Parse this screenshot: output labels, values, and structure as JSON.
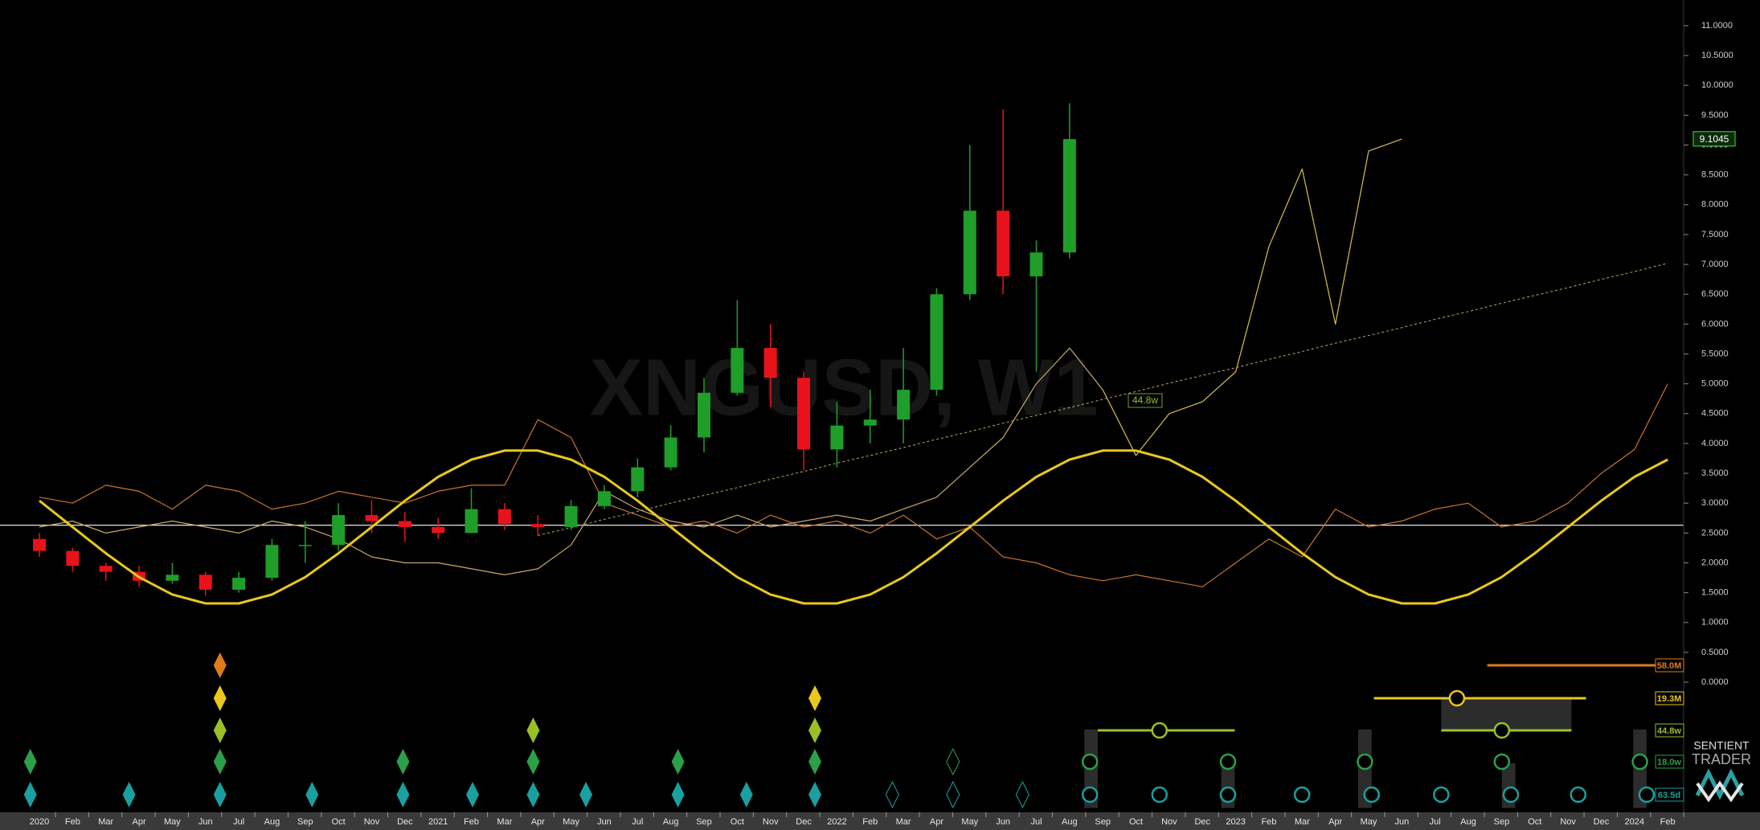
{
  "chart_data": {
    "type": "candlestick",
    "watermark": "XNGUSD, W1",
    "categories": [
      "2020",
      "Feb",
      "Mar",
      "Apr",
      "May",
      "Jun",
      "Jul",
      "Aug",
      "Sep",
      "Oct",
      "Nov",
      "Dec",
      "2021",
      "Feb",
      "Mar",
      "Apr",
      "May",
      "Jun",
      "Jul",
      "Aug",
      "Sep",
      "Oct",
      "Nov",
      "Dec",
      "2022",
      "Feb",
      "Mar",
      "Apr",
      "May",
      "Jun",
      "Jul",
      "Aug",
      "Sep",
      "Oct",
      "Nov",
      "Dec",
      "2023",
      "Feb",
      "Mar",
      "Apr",
      "May",
      "Jun",
      "Jul",
      "Aug",
      "Sep",
      "Oct",
      "Nov",
      "Dec",
      "2024",
      "Feb"
    ],
    "ohlc": {
      "up_color": "#1f9e2a",
      "down_color": "#e8121a",
      "open": [
        2.4,
        2.2,
        1.95,
        1.85,
        1.7,
        1.8,
        1.55,
        1.75,
        2.3,
        2.3,
        2.8,
        2.7,
        2.6,
        2.5,
        2.9,
        2.65,
        2.6,
        2.95,
        3.2,
        3.6,
        4.1,
        4.85,
        5.6,
        5.1,
        3.9,
        4.3,
        4.4,
        4.9,
        6.5,
        7.9,
        6.8,
        7.2,
        null,
        null,
        null,
        null,
        null,
        null,
        null,
        null,
        null,
        null,
        null,
        null,
        null,
        null,
        null,
        null,
        null,
        null
      ],
      "high": [
        2.5,
        2.25,
        2.0,
        1.95,
        2.0,
        1.85,
        1.85,
        2.4,
        2.7,
        3.0,
        3.05,
        2.85,
        2.75,
        3.25,
        3.0,
        2.8,
        3.05,
        3.3,
        3.75,
        4.3,
        5.1,
        6.4,
        6.0,
        5.2,
        4.7,
        4.9,
        5.6,
        6.6,
        9.0,
        9.6,
        7.4,
        9.7,
        null,
        null,
        null,
        null,
        null,
        null,
        null,
        null,
        null,
        null,
        null,
        null,
        null,
        null,
        null,
        null,
        null,
        null
      ],
      "low": [
        2.1,
        1.85,
        1.7,
        1.6,
        1.65,
        1.45,
        1.5,
        1.7,
        2.0,
        2.2,
        2.5,
        2.35,
        2.4,
        2.5,
        2.55,
        2.45,
        2.55,
        2.9,
        3.1,
        3.55,
        3.85,
        4.8,
        4.6,
        3.55,
        3.6,
        4.0,
        4.0,
        4.8,
        6.4,
        6.5,
        5.2,
        7.1,
        null,
        null,
        null,
        null,
        null,
        null,
        null,
        null,
        null,
        null,
        null,
        null,
        null,
        null,
        null,
        null,
        null,
        null
      ],
      "close": [
        2.2,
        1.95,
        1.85,
        1.7,
        1.8,
        1.55,
        1.75,
        2.3,
        2.3,
        2.8,
        2.7,
        2.6,
        2.5,
        2.9,
        2.65,
        2.6,
        2.95,
        3.2,
        3.6,
        4.1,
        4.85,
        5.6,
        5.1,
        3.9,
        4.3,
        4.4,
        4.9,
        6.5,
        7.9,
        6.8,
        7.2,
        9.1,
        null,
        null,
        null,
        null,
        null,
        null,
        null,
        null,
        null,
        null,
        null,
        null,
        null,
        null,
        null,
        null,
        null,
        null
      ]
    },
    "series": [
      {
        "color": "#c8742a",
        "line_width": 1.2,
        "values": [
          3.1,
          3.0,
          3.3,
          3.2,
          2.9,
          3.3,
          3.2,
          2.9,
          3.0,
          3.2,
          3.1,
          3.0,
          3.2,
          3.3,
          3.3,
          4.4,
          4.1,
          3.0,
          2.8,
          2.6,
          2.7,
          2.5,
          2.8,
          2.6,
          2.7,
          2.5,
          2.8,
          2.4,
          2.6,
          2.1,
          2.0,
          1.8,
          1.7,
          1.8,
          1.7,
          1.6,
          2.0,
          2.4,
          2.1,
          2.9,
          2.6,
          2.7,
          2.9,
          3.0,
          2.6,
          2.7,
          3.0,
          3.5,
          3.9,
          5.0
        ]
      },
      {
        "color": "#c9a86a",
        "line_width": 1.2,
        "values": [
          2.6,
          2.7,
          2.5,
          2.6,
          2.7,
          2.6,
          2.5,
          2.7,
          2.6,
          2.4,
          2.1,
          2.0,
          2.0,
          1.9,
          1.8,
          1.9,
          2.3,
          3.2,
          2.9,
          2.7,
          2.6,
          2.8,
          2.6,
          2.7,
          2.8,
          2.7,
          2.9,
          3.1,
          3.6,
          4.1,
          5.0,
          5.6,
          4.9,
          null,
          null,
          null,
          null,
          null,
          null,
          null,
          null,
          null,
          null,
          null,
          null,
          null,
          null,
          null,
          null,
          null
        ]
      },
      {
        "color": "#d8c048",
        "line_width": 1.2,
        "values": [
          null,
          null,
          null,
          null,
          null,
          null,
          null,
          null,
          null,
          null,
          null,
          null,
          null,
          null,
          null,
          null,
          null,
          null,
          null,
          null,
          null,
          null,
          null,
          null,
          null,
          null,
          null,
          null,
          null,
          null,
          null,
          null,
          4.9,
          3.8,
          4.5,
          4.7,
          5.2,
          7.3,
          8.6,
          6.0,
          8.9,
          9.1,
          null,
          null,
          null,
          null,
          null,
          null,
          null,
          null
        ]
      },
      {
        "color": "#b8b060",
        "line_width": 1,
        "dashed": true,
        "values": [
          null,
          null,
          null,
          null,
          null,
          null,
          null,
          null,
          null,
          null,
          null,
          null,
          null,
          null,
          null,
          2.46,
          2.59,
          2.73,
          2.86,
          3.0,
          3.13,
          3.26,
          3.4,
          3.53,
          3.67,
          3.8,
          3.93,
          4.07,
          4.2,
          4.34,
          4.47,
          4.6,
          4.74,
          4.87,
          5.01,
          5.14,
          5.27,
          5.41,
          5.54,
          5.68,
          5.81,
          5.94,
          6.08,
          6.21,
          6.35,
          6.48,
          6.61,
          6.75,
          6.88,
          7.02
        ]
      },
      {
        "color": "#e8c81e",
        "line_width": 3,
        "values": [
          3.04,
          2.6,
          2.16,
          1.76,
          1.47,
          1.32,
          1.32,
          1.47,
          1.76,
          2.16,
          2.6,
          3.04,
          3.44,
          3.73,
          3.88,
          3.88,
          3.73,
          3.44,
          3.04,
          2.6,
          2.16,
          1.76,
          1.47,
          1.32,
          1.32,
          1.47,
          1.76,
          2.16,
          2.6,
          3.04,
          3.44,
          3.73,
          3.88,
          3.88,
          3.73,
          3.44,
          3.04,
          2.6,
          2.16,
          1.76,
          1.47,
          1.32,
          1.32,
          1.47,
          1.76,
          2.16,
          2.6,
          3.04,
          3.44,
          3.73
        ]
      }
    ],
    "hline": {
      "value": 2.63,
      "color": "#ffffff"
    },
    "last_price": 9.1045,
    "last_price_color": "#2aa02a",
    "box_label": "44.8w",
    "ylim": [
      -2.18,
      11.43
    ],
    "yticks": [
      {
        "value": 0,
        "label": "0.0000"
      },
      {
        "value": 0.5,
        "label": "0.5000"
      },
      {
        "value": 1,
        "label": "1.0000"
      },
      {
        "value": 1.5,
        "label": "1.5000"
      },
      {
        "value": 2,
        "label": "2.0000"
      },
      {
        "value": 2.5,
        "label": "2.5000"
      },
      {
        "value": 3,
        "label": "3.0000"
      },
      {
        "value": 3.5,
        "label": "3.5000"
      },
      {
        "value": 4,
        "label": "4.0000"
      },
      {
        "value": 4.5,
        "label": "4.5000"
      },
      {
        "value": 5,
        "label": "5.0000"
      },
      {
        "value": 5.5,
        "label": "5.5000"
      },
      {
        "value": 6,
        "label": "6.0000"
      },
      {
        "value": 6.5,
        "label": "6.5000"
      },
      {
        "value": 7,
        "label": "7.0000"
      },
      {
        "value": 7.5,
        "label": "7.5000"
      },
      {
        "value": 8,
        "label": "8.0000"
      },
      {
        "value": 8.5,
        "label": "8.5000"
      },
      {
        "value": 9,
        "label": "9.0000"
      },
      {
        "value": 9.5,
        "label": "9.5000"
      },
      {
        "value": 10,
        "label": "10.0000"
      },
      {
        "value": 10.5,
        "label": "10.5000"
      },
      {
        "value": 11,
        "label": "11.0000"
      }
    ],
    "cycles": [
      {
        "label": "58.0M",
        "color": "#e07b1a"
      },
      {
        "label": "19.3M",
        "color": "#e8c81e"
      },
      {
        "label": "44.8w",
        "color": "#9ac026"
      },
      {
        "label": "18.0w",
        "color": "#2aa04a"
      },
      {
        "label": "63.5d",
        "color": "#1aa0a0"
      }
    ],
    "logo": {
      "line1": "SENTIENT",
      "line2": "TRADER"
    }
  }
}
